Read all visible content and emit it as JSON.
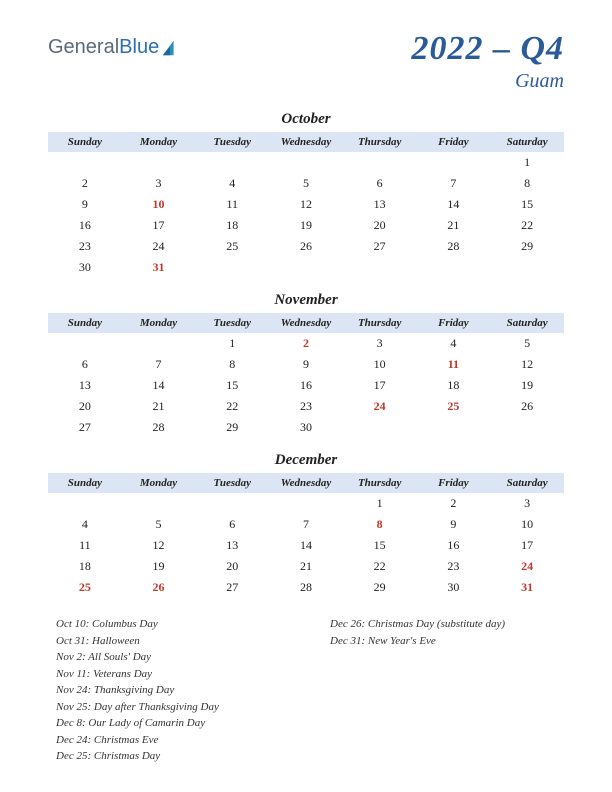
{
  "logo": {
    "text1": "General",
    "text2": "Blue",
    "mark_color": "#2a8fc0"
  },
  "title": {
    "main": "2022 – Q4",
    "sub": "Guam"
  },
  "weekdays": [
    "Sunday",
    "Monday",
    "Tuesday",
    "Wednesday",
    "Thursday",
    "Friday",
    "Saturday"
  ],
  "colors": {
    "header_bg": "#dbe5f4",
    "title_color": "#2a5a9a",
    "holiday_color": "#c0392b",
    "text_color": "#222222"
  },
  "months": [
    {
      "name": "October",
      "weeks": [
        [
          null,
          null,
          null,
          null,
          null,
          null,
          {
            "d": 1
          }
        ],
        [
          {
            "d": 2
          },
          {
            "d": 3
          },
          {
            "d": 4
          },
          {
            "d": 5
          },
          {
            "d": 6
          },
          {
            "d": 7
          },
          {
            "d": 8
          }
        ],
        [
          {
            "d": 9
          },
          {
            "d": 10,
            "h": true
          },
          {
            "d": 11
          },
          {
            "d": 12
          },
          {
            "d": 13
          },
          {
            "d": 14
          },
          {
            "d": 15
          }
        ],
        [
          {
            "d": 16
          },
          {
            "d": 17
          },
          {
            "d": 18
          },
          {
            "d": 19
          },
          {
            "d": 20
          },
          {
            "d": 21
          },
          {
            "d": 22
          }
        ],
        [
          {
            "d": 23
          },
          {
            "d": 24
          },
          {
            "d": 25
          },
          {
            "d": 26
          },
          {
            "d": 27
          },
          {
            "d": 28
          },
          {
            "d": 29
          }
        ],
        [
          {
            "d": 30
          },
          {
            "d": 31,
            "h": true
          },
          null,
          null,
          null,
          null,
          null
        ]
      ]
    },
    {
      "name": "November",
      "weeks": [
        [
          null,
          null,
          {
            "d": 1
          },
          {
            "d": 2,
            "h": true
          },
          {
            "d": 3
          },
          {
            "d": 4
          },
          {
            "d": 5
          }
        ],
        [
          {
            "d": 6
          },
          {
            "d": 7
          },
          {
            "d": 8
          },
          {
            "d": 9
          },
          {
            "d": 10
          },
          {
            "d": 11,
            "h": true
          },
          {
            "d": 12
          }
        ],
        [
          {
            "d": 13
          },
          {
            "d": 14
          },
          {
            "d": 15
          },
          {
            "d": 16
          },
          {
            "d": 17
          },
          {
            "d": 18
          },
          {
            "d": 19
          }
        ],
        [
          {
            "d": 20
          },
          {
            "d": 21
          },
          {
            "d": 22
          },
          {
            "d": 23
          },
          {
            "d": 24,
            "h": true
          },
          {
            "d": 25,
            "h": true
          },
          {
            "d": 26
          }
        ],
        [
          {
            "d": 27
          },
          {
            "d": 28
          },
          {
            "d": 29
          },
          {
            "d": 30
          },
          null,
          null,
          null
        ]
      ]
    },
    {
      "name": "December",
      "weeks": [
        [
          null,
          null,
          null,
          null,
          {
            "d": 1
          },
          {
            "d": 2
          },
          {
            "d": 3
          }
        ],
        [
          {
            "d": 4
          },
          {
            "d": 5
          },
          {
            "d": 6
          },
          {
            "d": 7
          },
          {
            "d": 8,
            "h": true
          },
          {
            "d": 9
          },
          {
            "d": 10
          }
        ],
        [
          {
            "d": 11
          },
          {
            "d": 12
          },
          {
            "d": 13
          },
          {
            "d": 14
          },
          {
            "d": 15
          },
          {
            "d": 16
          },
          {
            "d": 17
          }
        ],
        [
          {
            "d": 18
          },
          {
            "d": 19
          },
          {
            "d": 20
          },
          {
            "d": 21
          },
          {
            "d": 22
          },
          {
            "d": 23
          },
          {
            "d": 24,
            "h": true
          }
        ],
        [
          {
            "d": 25,
            "h": true
          },
          {
            "d": 26,
            "h": true
          },
          {
            "d": 27
          },
          {
            "d": 28
          },
          {
            "d": 29
          },
          {
            "d": 30
          },
          {
            "d": 31,
            "h": true
          }
        ]
      ]
    }
  ],
  "holidays_col1": [
    "Oct 10: Columbus Day",
    "Oct 31: Halloween",
    "Nov 2: All Souls' Day",
    "Nov 11: Veterans Day",
    "Nov 24: Thanksgiving Day",
    "Nov 25: Day after Thanksgiving Day",
    "Dec 8: Our Lady of Camarin Day",
    "Dec 24: Christmas Eve",
    "Dec 25: Christmas Day"
  ],
  "holidays_col2": [
    "Dec 26: Christmas Day (substitute day)",
    "Dec 31: New Year's Eve"
  ]
}
